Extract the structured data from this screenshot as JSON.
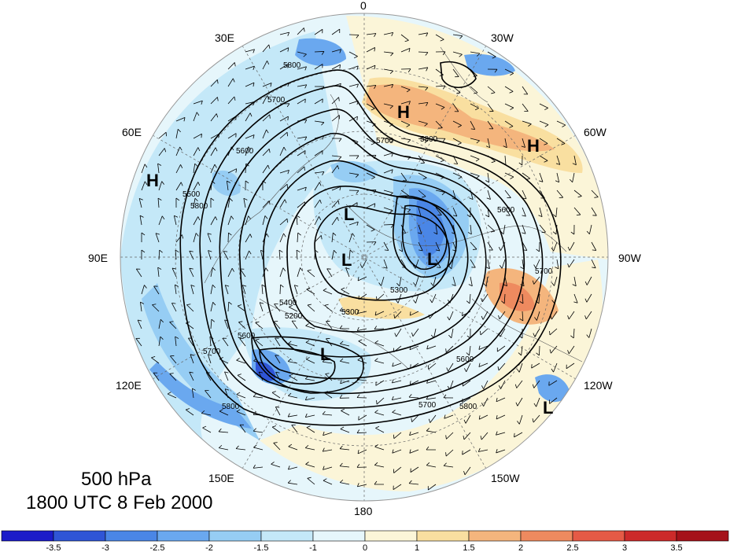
{
  "map": {
    "center_lon_top": "0",
    "longitude_labels": [
      "0",
      "30W",
      "60W",
      "90W",
      "120W",
      "150W",
      "180",
      "150E",
      "120E",
      "90E",
      "60E",
      "30E"
    ],
    "pressure_centers": [
      {
        "type": "H",
        "region": "north-atlantic",
        "color": "#000000"
      },
      {
        "type": "H",
        "region": "atlantic-east",
        "color": "#000000"
      },
      {
        "type": "H",
        "region": "central-asia",
        "color": "#000000"
      },
      {
        "type": "L",
        "region": "arctic",
        "color": "#000000"
      },
      {
        "type": "L",
        "region": "canada",
        "color": "#000000"
      },
      {
        "type": "L",
        "region": "siberia",
        "color": "#000000"
      },
      {
        "type": "L",
        "region": "bering",
        "color": "#000000"
      },
      {
        "type": "L",
        "region": "east-pacific",
        "color": "#000000"
      }
    ],
    "contour_labels": [
      "5800",
      "5700",
      "5600",
      "5500",
      "5700",
      "5800",
      "5600",
      "5300",
      "5300",
      "5200",
      "5400",
      "5600",
      "5700",
      "5800",
      "5600",
      "5700",
      "5800",
      "5700",
      "5800"
    ]
  },
  "caption": {
    "level": "500 hPa",
    "time": "1800 UTC 8 Feb 2000"
  },
  "colorbar": {
    "ticks": [
      "-3.5",
      "-3",
      "-2.5",
      "-2",
      "-1.5",
      "-1",
      "0",
      "1",
      "1.5",
      "2",
      "2.5",
      "3",
      "3.5"
    ],
    "colors": [
      "#1b1bc9",
      "#2f55d6",
      "#4a86e6",
      "#6aa8ef",
      "#96cdf4",
      "#c4e8f8",
      "#e6f6fb",
      "#fbf5d8",
      "#f9dfa0",
      "#f4b57d",
      "#ee8a5f",
      "#e55a46",
      "#cc2a2a",
      "#a5121a"
    ]
  }
}
